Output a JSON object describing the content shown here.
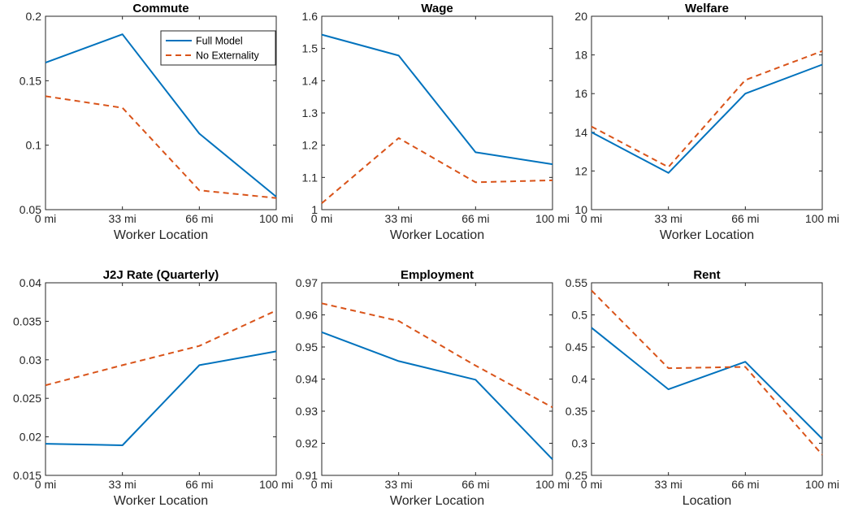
{
  "colors": {
    "full": "#0072BD",
    "noext": "#D95319",
    "axis": "#262626"
  },
  "legend": {
    "location": "top-right",
    "panel": 0,
    "items": [
      "Full Model",
      "No Externality"
    ]
  },
  "chart_data": [
    {
      "type": "line",
      "title": "Commute",
      "xlabel": "Worker Location",
      "categories": [
        "0 mi",
        "33 mi",
        "66 mi",
        "100 mi"
      ],
      "ylim": [
        0.05,
        0.2
      ],
      "yticks": [
        "0.05",
        "0.1",
        "0.15",
        "0.2"
      ],
      "series": [
        {
          "name": "Full Model",
          "values": [
            0.164,
            0.186,
            0.109,
            0.06
          ]
        },
        {
          "name": "No Externality",
          "values": [
            0.138,
            0.129,
            0.065,
            0.059
          ]
        }
      ]
    },
    {
      "type": "line",
      "title": "Wage",
      "xlabel": "Worker Location",
      "categories": [
        "0 mi",
        "33 mi",
        "66 mi",
        "100 mi"
      ],
      "ylim": [
        1.0,
        1.6
      ],
      "yticks": [
        "1",
        "1.1",
        "1.2",
        "1.3",
        "1.4",
        "1.5",
        "1.6"
      ],
      "series": [
        {
          "name": "Full Model",
          "values": [
            1.543,
            1.478,
            1.178,
            1.141
          ]
        },
        {
          "name": "No Externality",
          "values": [
            1.02,
            1.222,
            1.085,
            1.091
          ]
        }
      ]
    },
    {
      "type": "line",
      "title": "Welfare",
      "xlabel": "Worker Location",
      "categories": [
        "0 mi",
        "33 mi",
        "66 mi",
        "100 mi"
      ],
      "ylim": [
        10,
        20
      ],
      "yticks": [
        "10",
        "12",
        "14",
        "16",
        "18",
        "20"
      ],
      "series": [
        {
          "name": "Full Model",
          "values": [
            14.0,
            11.9,
            16.0,
            17.5
          ]
        },
        {
          "name": "No Externality",
          "values": [
            14.3,
            12.2,
            16.7,
            18.2
          ]
        }
      ]
    },
    {
      "type": "line",
      "title": "J2J Rate (Quarterly)",
      "xlabel": "Worker Location",
      "categories": [
        "0 mi",
        "33 mi",
        "66 mi",
        "100 mi"
      ],
      "ylim": [
        0.015,
        0.04
      ],
      "yticks": [
        "0.015",
        "0.02",
        "0.025",
        "0.03",
        "0.035",
        "0.04"
      ],
      "series": [
        {
          "name": "Full Model",
          "values": [
            0.0191,
            0.0189,
            0.0293,
            0.0311
          ]
        },
        {
          "name": "No Externality",
          "values": [
            0.0267,
            0.0293,
            0.0318,
            0.0364
          ]
        }
      ]
    },
    {
      "type": "line",
      "title": "Employment",
      "xlabel": "Worker Location",
      "categories": [
        "0 mi",
        "33 mi",
        "66 mi",
        "100 mi"
      ],
      "ylim": [
        0.91,
        0.97
      ],
      "yticks": [
        "0.91",
        "0.92",
        "0.93",
        "0.94",
        "0.95",
        "0.96",
        "0.97"
      ],
      "series": [
        {
          "name": "Full Model",
          "values": [
            0.9546,
            0.9456,
            0.9398,
            0.915
          ]
        },
        {
          "name": "No Externality",
          "values": [
            0.9636,
            0.9581,
            0.9442,
            0.9312
          ]
        }
      ]
    },
    {
      "type": "line",
      "title": "Rent",
      "xlabel": "Location",
      "categories": [
        "0 mi",
        "33 mi",
        "66 mi",
        "100 mi"
      ],
      "ylim": [
        0.25,
        0.55
      ],
      "yticks": [
        "0.25",
        "0.3",
        "0.35",
        "0.4",
        "0.45",
        "0.5",
        "0.55"
      ],
      "series": [
        {
          "name": "Full Model",
          "values": [
            0.48,
            0.384,
            0.427,
            0.307
          ]
        },
        {
          "name": "No Externality",
          "values": [
            0.538,
            0.417,
            0.419,
            0.282
          ]
        }
      ]
    }
  ]
}
